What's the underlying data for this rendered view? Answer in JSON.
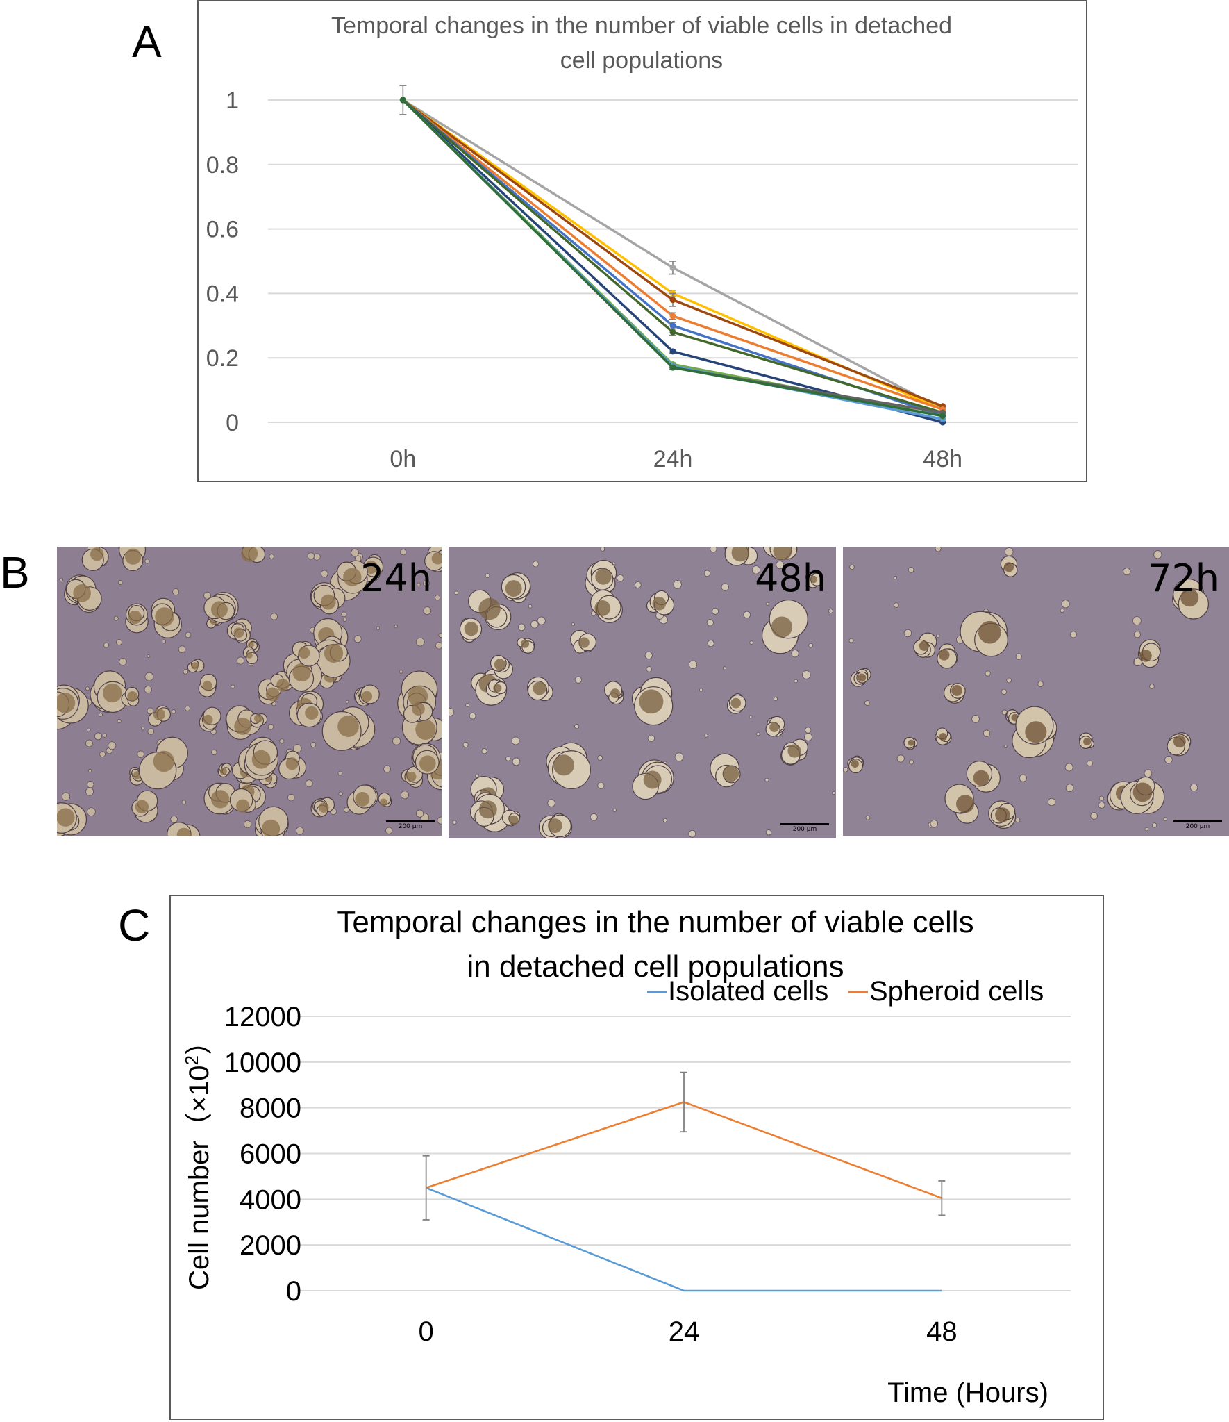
{
  "panels": {
    "a_label": "A",
    "b_label": "B",
    "c_label": "C"
  },
  "chart_data": [
    {
      "panel": "A",
      "type": "line",
      "title": "Temporal changes in the number of viable cells in detached cell populations",
      "categories": [
        "0h",
        "24h",
        "48h"
      ],
      "ylim": [
        0,
        1
      ],
      "yticks": [
        "0",
        "0.2",
        "0.4",
        "0.6",
        "0.8",
        "1"
      ],
      "grid": "horizontal",
      "series": [
        {
          "color": "#a5a5a5",
          "values": [
            1,
            0.48,
            0.04
          ],
          "error": [
            0,
            0.02,
            0
          ]
        },
        {
          "color": "#ffc000",
          "values": [
            1,
            0.4,
            0.04
          ],
          "error": [
            0,
            0.01,
            0
          ]
        },
        {
          "color": "#9e480e",
          "values": [
            1,
            0.38,
            0.05
          ],
          "error": [
            0,
            0.02,
            0
          ]
        },
        {
          "color": "#ed7d31",
          "values": [
            1,
            0.33,
            0.04
          ],
          "error": [
            0,
            0.01,
            0
          ]
        },
        {
          "color": "#4472c4",
          "values": [
            1,
            0.3,
            0.02
          ],
          "error": [
            0,
            0.01,
            0
          ]
        },
        {
          "color": "#43682b",
          "values": [
            1,
            0.28,
            0.03
          ],
          "error": [
            0,
            0.01,
            0
          ]
        },
        {
          "color": "#264478",
          "values": [
            1,
            0.22,
            0.0
          ],
          "error": [
            0,
            0.005,
            0
          ]
        },
        {
          "color": "#70ad47",
          "values": [
            1,
            0.18,
            0.02
          ],
          "error": [
            0,
            0.005,
            0
          ]
        },
        {
          "color": "#5b9bd5",
          "values": [
            1,
            0.175,
            0.01
          ],
          "error": [
            0,
            0.005,
            0
          ]
        },
        {
          "color": "#636363",
          "values": [
            1,
            0.17,
            0.03
          ],
          "error": [
            0,
            0.005,
            0
          ]
        },
        {
          "color": "#2f6e3a",
          "values": [
            1,
            0.17,
            0.02
          ],
          "error": [
            0.045,
            0,
            0
          ]
        }
      ]
    },
    {
      "panel": "C",
      "type": "line",
      "title": "Temporal changes in the number of viable cells in detached cell populations",
      "title_lines": [
        "Temporal changes in the number of viable cells",
        "in detached cell populations"
      ],
      "x": [
        "0",
        "24",
        "48"
      ],
      "xlabel": "Time (Hours)",
      "ylabel": "Cell number（×10",
      "ylabel_sup": "2",
      "ylabel_close": "）",
      "ylim": [
        0,
        12000
      ],
      "yticks": [
        "0",
        "2000",
        "4000",
        "6000",
        "8000",
        "10000",
        "12000"
      ],
      "grid": "horizontal",
      "legend": "top",
      "series": [
        {
          "name": "Isolated cells",
          "color": "#5b9bd5",
          "values": [
            4500,
            0,
            0
          ],
          "error": [
            0,
            0,
            0
          ]
        },
        {
          "name": "Spheroid cells",
          "color": "#ed7d31",
          "values": [
            4500,
            8250,
            4050
          ],
          "error": [
            1400,
            1300,
            750
          ]
        }
      ]
    }
  ],
  "micrographs": {
    "images": [
      {
        "time_label": "24h",
        "scale_label": "200 μm",
        "background": "#8d7e92",
        "colony_color": "#c8b9a0",
        "core_color": "#8a6e48",
        "density": "high"
      },
      {
        "time_label": "48h",
        "scale_label": "200 μm",
        "background": "#8e8294",
        "colony_color": "#d8ccb6",
        "core_color": "#7a6040",
        "density": "medium"
      },
      {
        "time_label": "72h",
        "scale_label": "200 μm",
        "background": "#908396",
        "colony_color": "#d2c4aa",
        "core_color": "#6e5236",
        "density": "low"
      }
    ]
  }
}
